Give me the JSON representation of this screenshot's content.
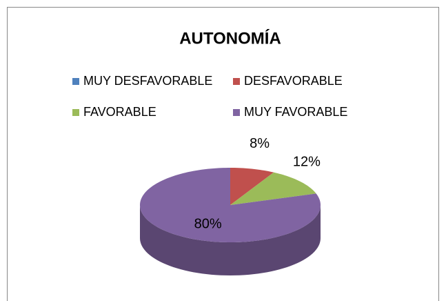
{
  "chart_data": {
    "type": "pie",
    "title": "AUTONOMÍA",
    "categories": [
      "MUY DESFAVORABLE",
      "DESFAVORABLE",
      "FAVORABLE",
      "MUY FAVORABLE"
    ],
    "values": [
      0,
      8,
      12,
      80
    ],
    "value_labels": [
      null,
      "8%",
      "12%",
      "80%"
    ],
    "colors": [
      "#4f81bd",
      "#c0504d",
      "#9bbb59",
      "#8064a2"
    ],
    "legend": "top"
  }
}
